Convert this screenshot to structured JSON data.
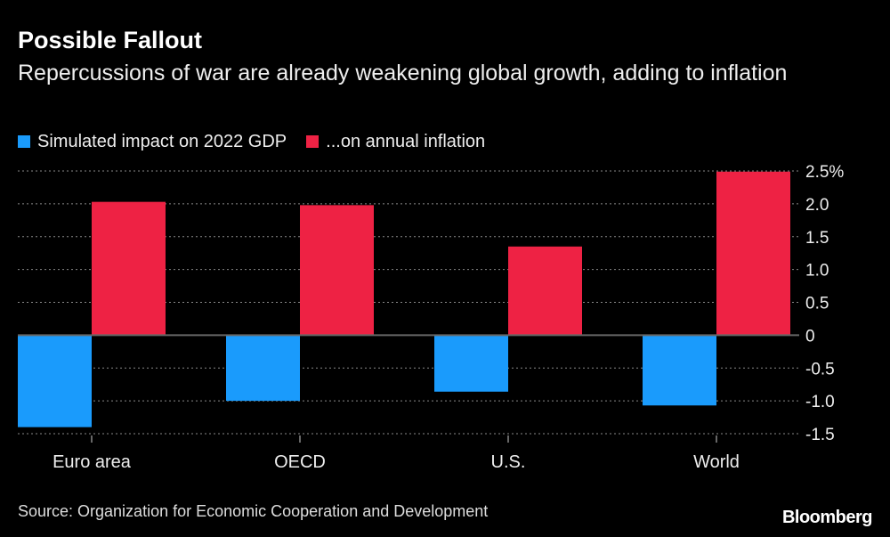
{
  "chart_data": {
    "type": "bar",
    "title": "Possible Fallout",
    "subtitle": "Repercussions of war are already weakening global growth, adding to inflation",
    "categories": [
      "Euro area",
      "OECD",
      "U.S.",
      "World"
    ],
    "series": [
      {
        "name": "Simulated impact on 2022 GDP",
        "color": "#1a9bfc",
        "values": [
          -1.4,
          -1.0,
          -0.86,
          -1.07
        ]
      },
      {
        "name": "...on annual inflation",
        "color": "#ee2244",
        "values": [
          2.03,
          1.98,
          1.35,
          2.49
        ]
      }
    ],
    "ylim": [
      -1.5,
      2.5
    ],
    "yticks": [
      2.5,
      2.0,
      1.5,
      1.0,
      0.5,
      0,
      -0.5,
      -1.0,
      -1.5
    ],
    "ytick_labels": [
      "2.5%",
      "2.0",
      "1.5",
      "1.0",
      "0.5",
      "0",
      "-0.5",
      "-1.0",
      "-1.5"
    ],
    "grid": true,
    "legend_position": "top-left",
    "yaxis_position": "right"
  },
  "source": "Source: Organization for Economic Cooperation and Development",
  "logo": "Bloomberg"
}
